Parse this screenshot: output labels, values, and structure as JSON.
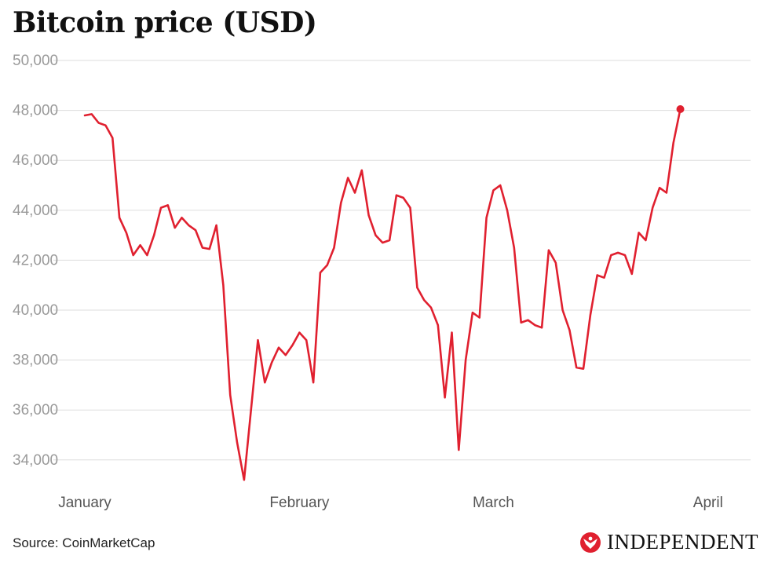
{
  "chart_data": {
    "type": "line",
    "title": "Bitcoin price (USD)",
    "xlabel": "",
    "ylabel": "",
    "x_ticks": [
      "January",
      "February",
      "March",
      "April"
    ],
    "y_ticks": [
      "34,000",
      "36,000",
      "38,000",
      "40,000",
      "42,000",
      "44,000",
      "46,000",
      "48,000",
      "50,000"
    ],
    "ylim": [
      33000,
      50000
    ],
    "grid": true,
    "series_color": "#e0202f",
    "last_point_marker": true,
    "x_start": "2022-01-01",
    "series": [
      {
        "values": [
          47800,
          47850,
          47500,
          47400,
          46900,
          43700,
          43100,
          42200,
          42600,
          42200,
          43000,
          44100,
          44200,
          43300,
          43700,
          43400,
          43200,
          42500,
          42450,
          43400,
          41000,
          36600,
          34700,
          33200,
          36000,
          38800,
          37100,
          37900,
          38500,
          38200,
          38600,
          39100,
          38800,
          37100,
          41500,
          41800,
          42500,
          44300,
          45300,
          44700,
          45600,
          43800,
          43000,
          42700,
          42800,
          44600,
          44500,
          44100,
          40900,
          40400,
          40100,
          39400,
          36500,
          39100,
          34400,
          38000,
          39900,
          39700,
          43700,
          44800,
          45000,
          44000,
          42500,
          39500,
          39600,
          39400,
          39300,
          42400,
          41900,
          40000,
          39200,
          37700,
          37650,
          39800,
          41400,
          41300,
          42200,
          42300,
          42200,
          41450,
          43100,
          42800,
          44100,
          44900,
          44700,
          46700,
          48050
        ]
      }
    ]
  },
  "footer": {
    "source": "Source: CoinMarketCap",
    "logo_text": "INDEPENDENT",
    "logo_icon": "eagle-icon"
  }
}
